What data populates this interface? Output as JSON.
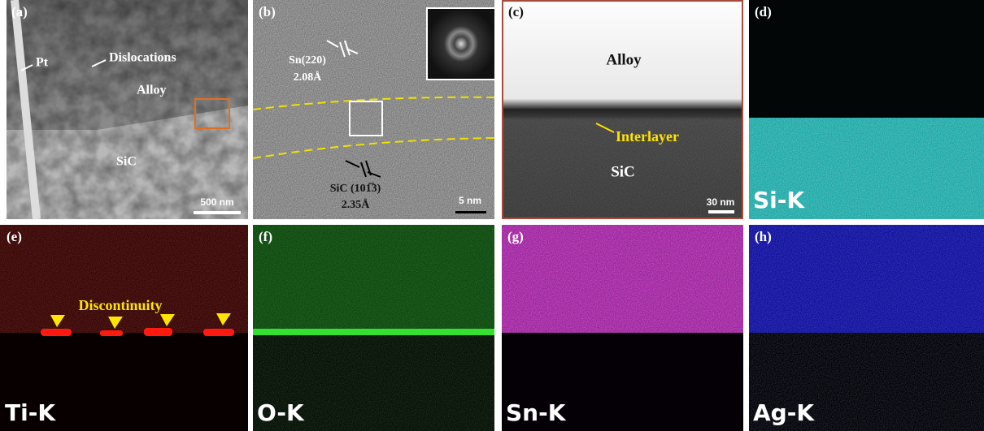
{
  "panels": [
    {
      "label": "(a)",
      "texts": [
        "Pt",
        "Dislocations",
        "Alloy",
        "SiC"
      ],
      "scale_bar": "500 nm"
    },
    {
      "label": "(b)",
      "texts": [
        "Sn(220)",
        "2.08Å",
        "SiC (101̅3)",
        "2.35Å"
      ],
      "scale_bar": "5 nm"
    },
    {
      "label": "(c)",
      "texts": [
        "Alloy",
        "Interlayer",
        "SiC"
      ],
      "scale_bar": "30 nm"
    },
    {
      "label": "(d)",
      "element": "Si-K"
    },
    {
      "label": "(e)",
      "texts": [
        "Discontinuity"
      ],
      "element": "Ti-K"
    },
    {
      "label": "(f)",
      "element": "O-K"
    },
    {
      "label": "(g)",
      "element": "Sn-K"
    },
    {
      "label": "(h)",
      "element": "Ag-K"
    }
  ]
}
